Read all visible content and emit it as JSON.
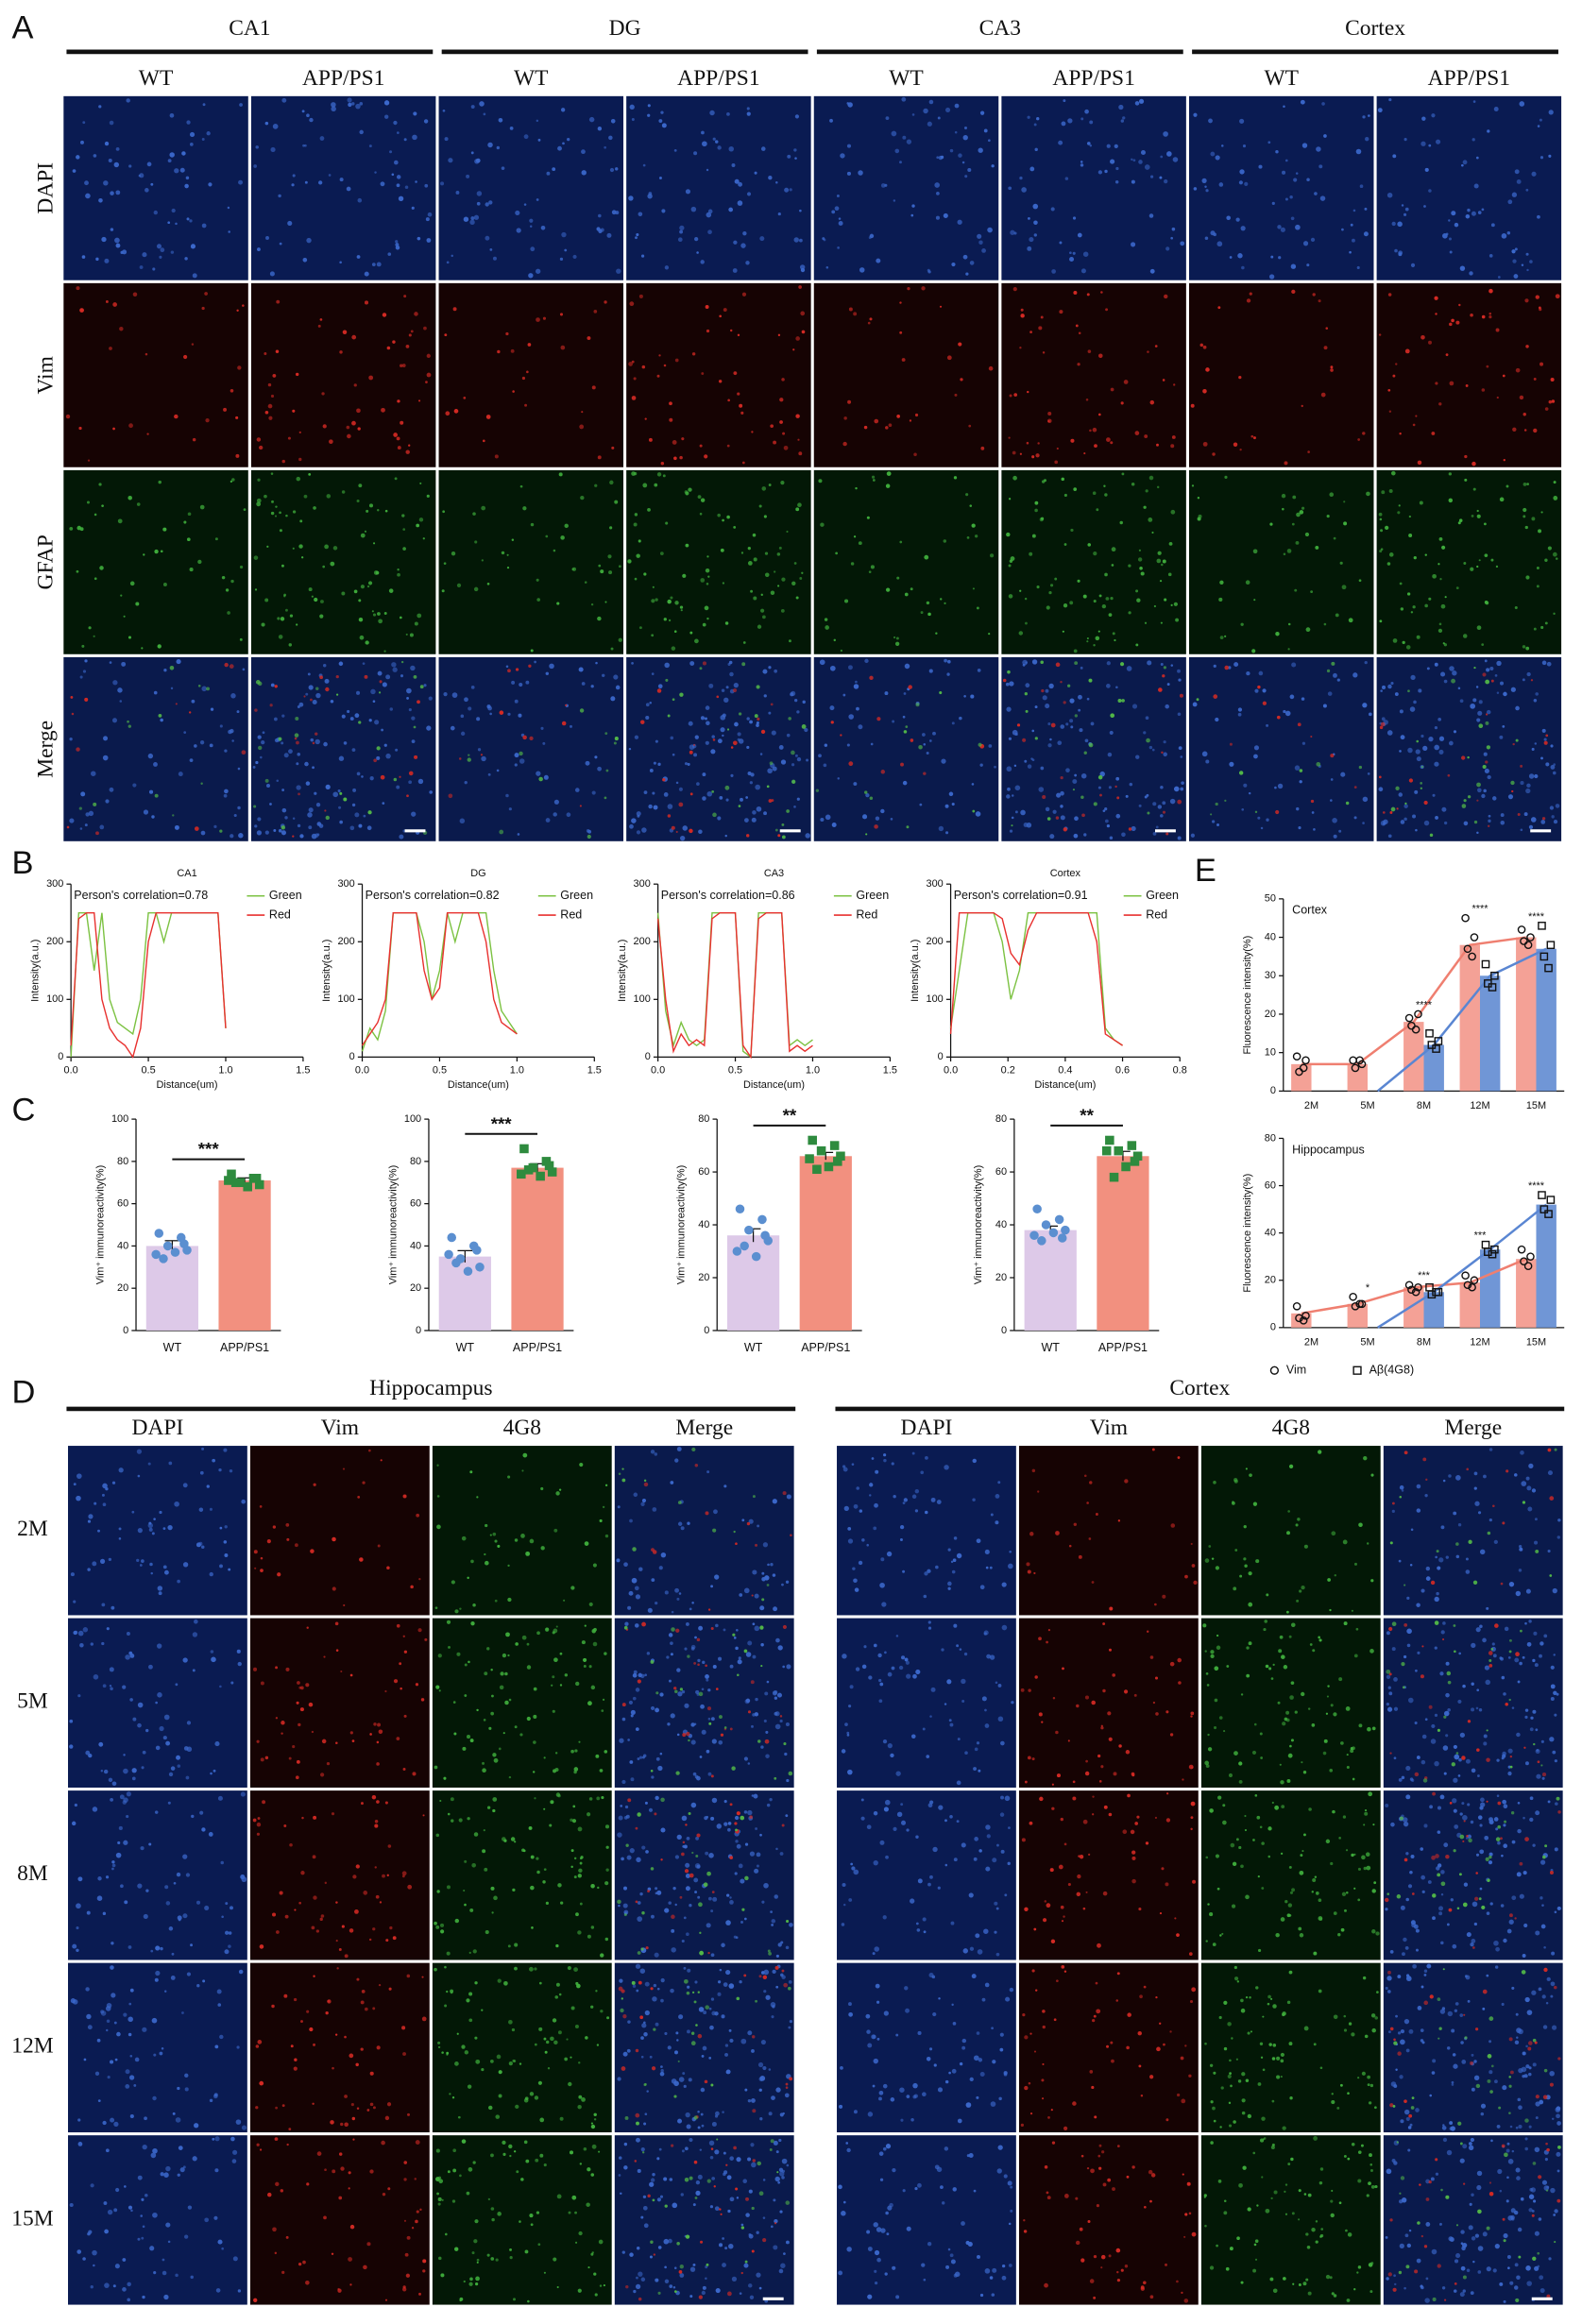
{
  "panel_labels": [
    "A",
    "B",
    "C",
    "D",
    "E"
  ],
  "panel_a": {
    "regions": [
      "CA1",
      "DG",
      "CA3",
      "Cortex"
    ],
    "conditions": [
      "WT",
      "APP/PS1"
    ],
    "stains": [
      "DAPI",
      "Vim",
      "GFAP",
      "Merge"
    ]
  },
  "panel_d": {
    "regions": [
      "Hippocampus",
      "Cortex"
    ],
    "stains": [
      "DAPI",
      "Vim",
      "4G8",
      "Merge"
    ],
    "ages": [
      "2M",
      "5M",
      "8M",
      "12M",
      "15M"
    ]
  },
  "chart_data": [
    {
      "type": "line",
      "title": "CA1",
      "annotation": "Person's correlation=0.78",
      "xlabel": "Distance(um)",
      "ylabel": "Intensity(a.u.)",
      "x": [
        0,
        0.05,
        0.1,
        0.15,
        0.2,
        0.25,
        0.3,
        0.35,
        0.4,
        0.45,
        0.5,
        0.55,
        0.6,
        0.65,
        0.7,
        0.75,
        0.8,
        0.85,
        0.9,
        0.95,
        1
      ],
      "series": [
        {
          "name": "Green",
          "color": "#7cc242",
          "values": [
            0,
            250,
            250,
            150,
            250,
            100,
            60,
            50,
            40,
            100,
            250,
            250,
            200,
            250,
            250,
            250,
            250,
            250,
            250,
            250,
            50
          ]
        },
        {
          "name": "Red",
          "color": "#e8312f",
          "values": [
            20,
            240,
            250,
            250,
            100,
            50,
            30,
            20,
            0,
            50,
            200,
            250,
            250,
            250,
            250,
            250,
            250,
            250,
            250,
            250,
            50
          ]
        }
      ],
      "xlim": [
        0,
        1.5
      ],
      "xticks": [
        {
          "value": 0,
          "label": "0.0"
        },
        0.5,
        {
          "value": 1,
          "label": "1.0"
        },
        1.5
      ],
      "ylim": [
        0,
        300
      ],
      "yticks": [
        0,
        100,
        200,
        300
      ]
    },
    {
      "type": "line",
      "title": "DG",
      "annotation": "Person's correlation=0.82",
      "xlabel": "Distance(um)",
      "ylabel": "Intensity(a.u.)",
      "x": [
        0,
        0.05,
        0.1,
        0.15,
        0.2,
        0.25,
        0.3,
        0.35,
        0.4,
        0.45,
        0.5,
        0.55,
        0.6,
        0.65,
        0.7,
        0.75,
        0.8,
        0.85,
        0.9,
        0.95,
        1
      ],
      "series": [
        {
          "name": "Green",
          "color": "#7cc242",
          "values": [
            10,
            50,
            30,
            80,
            250,
            250,
            250,
            250,
            200,
            100,
            150,
            250,
            200,
            250,
            250,
            250,
            250,
            150,
            80,
            60,
            40
          ]
        },
        {
          "name": "Red",
          "color": "#e8312f",
          "values": [
            20,
            40,
            60,
            100,
            250,
            250,
            250,
            250,
            150,
            100,
            120,
            250,
            250,
            250,
            250,
            250,
            200,
            100,
            60,
            50,
            40
          ]
        }
      ],
      "xlim": [
        0,
        1.5
      ],
      "xticks": [
        {
          "value": 0,
          "label": "0.0"
        },
        0.5,
        {
          "value": 1,
          "label": "1.0"
        },
        1.5
      ],
      "ylim": [
        0,
        300
      ],
      "yticks": [
        0,
        100,
        200,
        300
      ]
    },
    {
      "type": "line",
      "title": "CA3",
      "annotation": "Person's correlation=0.86",
      "xlabel": "Distance(um)",
      "ylabel": "Intensity(a.u.)",
      "x": [
        0,
        0.05,
        0.1,
        0.15,
        0.2,
        0.25,
        0.3,
        0.35,
        0.4,
        0.45,
        0.5,
        0.55,
        0.6,
        0.65,
        0.7,
        0.75,
        0.8,
        0.85,
        0.9,
        0.95,
        1
      ],
      "series": [
        {
          "name": "Green",
          "color": "#7cc242",
          "values": [
            250,
            80,
            20,
            60,
            30,
            20,
            30,
            250,
            250,
            250,
            250,
            10,
            0,
            250,
            250,
            250,
            250,
            20,
            30,
            20,
            30
          ]
        },
        {
          "name": "Red",
          "color": "#e8312f",
          "values": [
            240,
            100,
            10,
            40,
            20,
            30,
            20,
            240,
            250,
            250,
            250,
            20,
            0,
            240,
            250,
            250,
            250,
            10,
            20,
            10,
            20
          ]
        }
      ],
      "xlim": [
        0,
        1.5
      ],
      "xticks": [
        {
          "value": 0,
          "label": "0.0"
        },
        0.5,
        {
          "value": 1,
          "label": "1.0"
        },
        1.5
      ],
      "ylim": [
        0,
        300
      ],
      "yticks": [
        0,
        100,
        200,
        300
      ]
    },
    {
      "type": "line",
      "title": "Cortex",
      "annotation": "Person's correlation=0.91",
      "xlabel": "Distance(um)",
      "ylabel": "Intensity(a.u.)",
      "x": [
        0,
        0.03,
        0.06,
        0.09,
        0.12,
        0.15,
        0.18,
        0.21,
        0.24,
        0.27,
        0.3,
        0.33,
        0.36,
        0.39,
        0.42,
        0.45,
        0.48,
        0.51,
        0.54,
        0.57,
        0.6
      ],
      "series": [
        {
          "name": "Green",
          "color": "#7cc242",
          "values": [
            50,
            150,
            250,
            250,
            250,
            250,
            200,
            100,
            150,
            250,
            250,
            250,
            250,
            250,
            250,
            250,
            250,
            250,
            50,
            30,
            20
          ]
        },
        {
          "name": "Red",
          "color": "#e8312f",
          "values": [
            40,
            250,
            250,
            250,
            250,
            250,
            240,
            180,
            160,
            220,
            250,
            250,
            250,
            250,
            250,
            250,
            250,
            200,
            40,
            30,
            20
          ]
        }
      ],
      "xlim": [
        0,
        0.8
      ],
      "xticks": [
        {
          "value": 0,
          "label": "0.0"
        },
        0.2,
        0.4,
        0.6,
        0.8
      ],
      "ylim": [
        0,
        300
      ],
      "yticks": [
        0,
        100,
        200,
        300
      ]
    },
    {
      "type": "bar",
      "categories": [
        "WT",
        "APP/PS1"
      ],
      "values": [
        40,
        71
      ],
      "errors": [
        2.5,
        1.2
      ],
      "points": [
        [
          46,
          44,
          40,
          38,
          36,
          37,
          41,
          34
        ],
        [
          74,
          72,
          70,
          69,
          71,
          68,
          72,
          70
        ]
      ],
      "colors": [
        "#ddc9e8",
        "#f2907f"
      ],
      "point_colors": [
        "#5b8fd0",
        "#2e8b3e"
      ],
      "point_shapes": [
        "circle",
        "square"
      ],
      "ylabel": "Vim⁺ immunoreactivity(%)",
      "significance": "***",
      "ylim": [
        0,
        100
      ],
      "yticks": [
        0,
        20,
        40,
        60,
        80,
        100
      ]
    },
    {
      "type": "bar",
      "categories": [
        "WT",
        "APP/PS1"
      ],
      "values": [
        35,
        77
      ],
      "errors": [
        2.8,
        1.9
      ],
      "points": [
        [
          44,
          40,
          34,
          30,
          36,
          28,
          38,
          32
        ],
        [
          86,
          80,
          77,
          75,
          74,
          73,
          78,
          76
        ]
      ],
      "colors": [
        "#ddc9e8",
        "#f2907f"
      ],
      "point_colors": [
        "#5b8fd0",
        "#2e8b3e"
      ],
      "point_shapes": [
        "circle",
        "square"
      ],
      "ylabel": "Vim⁺ immunoreactivity(%)",
      "significance": "***",
      "ylim": [
        0,
        100
      ],
      "yticks": [
        0,
        20,
        40,
        60,
        80,
        100
      ]
    },
    {
      "type": "bar",
      "categories": [
        "WT",
        "APP/PS1"
      ],
      "values": [
        36,
        66
      ],
      "errors": [
        2.5,
        1.4
      ],
      "points": [
        [
          46,
          42,
          38,
          34,
          30,
          28,
          36,
          32
        ],
        [
          72,
          70,
          68,
          66,
          65,
          62,
          64,
          61
        ]
      ],
      "colors": [
        "#ddc9e8",
        "#f2907f"
      ],
      "point_colors": [
        "#5b8fd0",
        "#2e8b3e"
      ],
      "point_shapes": [
        "circle",
        "square"
      ],
      "ylabel": "Vim⁺ immunoreactivity(%)",
      "significance": "**",
      "ylim": [
        0,
        80
      ],
      "yticks": [
        0,
        20,
        40,
        60,
        80
      ]
    },
    {
      "type": "bar",
      "categories": [
        "WT",
        "APP/PS1"
      ],
      "values": [
        38,
        66
      ],
      "errors": [
        1.5,
        1.8
      ],
      "points": [
        [
          46,
          42,
          40,
          38,
          36,
          37,
          35,
          34
        ],
        [
          72,
          70,
          68,
          66,
          68,
          62,
          64,
          58
        ]
      ],
      "colors": [
        "#ddc9e8",
        "#f2907f"
      ],
      "point_colors": [
        "#5b8fd0",
        "#2e8b3e"
      ],
      "point_shapes": [
        "circle",
        "square"
      ],
      "ylabel": "Vim⁺ immunoreactivity(%)",
      "significance": "**",
      "ylim": [
        0,
        80
      ],
      "yticks": [
        0,
        20,
        40,
        60,
        80
      ]
    },
    {
      "type": "bar_line",
      "subtitle": "Cortex",
      "categories": [
        "2M",
        "5M",
        "8M",
        "12M",
        "15M"
      ],
      "series": [
        {
          "name": "Vim",
          "color": "#f4a196",
          "line_color": "#ef7f70",
          "marker": "circle",
          "values": [
            7,
            7,
            18,
            38,
            40
          ],
          "points": [
            [
              9,
              8,
              5,
              6
            ],
            [
              8,
              7,
              6,
              8
            ],
            [
              19,
              20,
              17,
              16
            ],
            [
              45,
              40,
              37,
              35
            ],
            [
              42,
              40,
              39,
              38
            ]
          ]
        },
        {
          "name": "Aβ(4G8)",
          "color": "#7096d6",
          "line_color": "#5a86d2",
          "marker": "square",
          "values": [
            null,
            0,
            12,
            30,
            37
          ],
          "points": [
            null,
            null,
            [
              15,
              13,
              12,
              11
            ],
            [
              33,
              30,
              28,
              27
            ],
            [
              43,
              38,
              35,
              32
            ]
          ]
        }
      ],
      "significance": [
        null,
        null,
        "****",
        "****",
        "****"
      ],
      "ylabel": "Fluorescence intensity(%)",
      "legend": false,
      "ylim": [
        0,
        50
      ],
      "yticks": [
        0,
        10,
        20,
        30,
        40,
        50
      ]
    },
    {
      "type": "bar_line",
      "subtitle": "Hippocampus",
      "categories": [
        "2M",
        "5M",
        "8M",
        "12M",
        "15M"
      ],
      "series": [
        {
          "name": "Vim",
          "color": "#f4a196",
          "line_color": "#ef7f70",
          "marker": "circle",
          "values": [
            6,
            10,
            17,
            19,
            29
          ],
          "points": [
            [
              9,
              5,
              4,
              3
            ],
            [
              13,
              10,
              9,
              10
            ],
            [
              18,
              17,
              16,
              15
            ],
            [
              22,
              20,
              18,
              17
            ],
            [
              33,
              30,
              28,
              26
            ]
          ]
        },
        {
          "name": "Aβ(4G8)",
          "color": "#7096d6",
          "line_color": "#5a86d2",
          "marker": "square",
          "values": [
            null,
            0,
            15,
            33,
            52
          ],
          "points": [
            null,
            null,
            [
              17,
              15,
              14,
              15
            ],
            [
              35,
              33,
              32,
              31
            ],
            [
              56,
              54,
              50,
              48
            ]
          ]
        }
      ],
      "significance": [
        null,
        "*",
        "***",
        "***",
        "****"
      ],
      "ylabel": "Fluorescence intensity(%)",
      "legend": true,
      "ylim": [
        0,
        80
      ],
      "yticks": [
        0,
        20,
        40,
        60,
        80
      ]
    }
  ]
}
